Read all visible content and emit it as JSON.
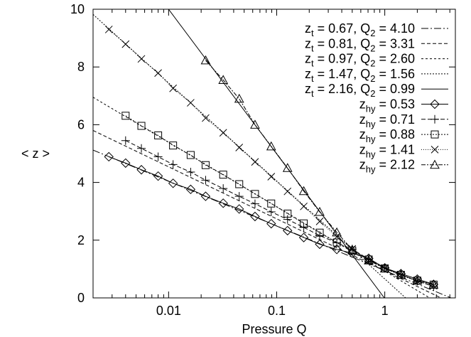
{
  "chart_data": {
    "type": "line",
    "title": "",
    "xlabel": "Pressure Q",
    "ylabel": "< z >",
    "xscale": "log",
    "xlim": [
      0.002,
      4.5
    ],
    "ylim": [
      0,
      10
    ],
    "grid": false,
    "legend_position": "top-right",
    "x_ticks": [
      {
        "value": 0.01,
        "label": "0.01"
      },
      {
        "value": 0.1,
        "label": "0.1"
      },
      {
        "value": 1,
        "label": "1"
      }
    ],
    "y_ticks": [
      {
        "value": 0,
        "label": "0"
      },
      {
        "value": 2,
        "label": "2"
      },
      {
        "value": 4,
        "label": "4"
      },
      {
        "value": 6,
        "label": "6"
      },
      {
        "value": 8,
        "label": "8"
      },
      {
        "value": 10,
        "label": "10"
      }
    ],
    "theory_series": [
      {
        "sub": "t",
        "z": "0.67",
        "Q2": "4.10",
        "dash": "10,3,2,3",
        "points": [
          [
            0.002,
            5.12
          ],
          [
            4.1,
            0.0
          ]
        ]
      },
      {
        "sub": "t",
        "z": "0.81",
        "Q2": "3.31",
        "dash": "5,3",
        "points": [
          [
            0.002,
            5.8
          ],
          [
            3.31,
            0.0
          ]
        ]
      },
      {
        "sub": "t",
        "z": "0.97",
        "Q2": "2.60",
        "dash": "3,3",
        "points": [
          [
            0.002,
            6.95
          ],
          [
            2.6,
            0.0
          ]
        ]
      },
      {
        "sub": "t",
        "z": "1.47",
        "Q2": "1.56",
        "dash": "2,2",
        "points": [
          [
            0.002,
            9.82
          ],
          [
            1.56,
            0.0
          ]
        ]
      },
      {
        "sub": "t",
        "z": "2.16",
        "Q2": "0.99",
        "dash": "none",
        "points": [
          [
            0.002,
            13.5
          ],
          [
            0.99,
            0.0
          ]
        ]
      }
    ],
    "sim_series": [
      {
        "sub": "hy",
        "z": "0.53",
        "marker": "diamond",
        "dash": "none",
        "points": [
          [
            0.0028,
            4.89
          ],
          [
            0.004,
            4.67
          ],
          [
            0.0056,
            4.44
          ],
          [
            0.008,
            4.22
          ],
          [
            0.011,
            3.97
          ],
          [
            0.016,
            3.76
          ],
          [
            0.022,
            3.52
          ],
          [
            0.032,
            3.28
          ],
          [
            0.045,
            3.08
          ],
          [
            0.063,
            2.82
          ],
          [
            0.089,
            2.57
          ],
          [
            0.126,
            2.33
          ],
          [
            0.178,
            2.09
          ],
          [
            0.25,
            1.86
          ],
          [
            0.36,
            1.68
          ],
          [
            0.5,
            1.55
          ],
          [
            0.71,
            1.37
          ],
          [
            1.0,
            1.04
          ],
          [
            1.41,
            0.84
          ],
          [
            2.0,
            0.65
          ],
          [
            2.83,
            0.47
          ]
        ]
      },
      {
        "sub": "hy",
        "z": "0.71",
        "marker": "plus",
        "dash": "6,3",
        "points": [
          [
            0.004,
            5.45
          ],
          [
            0.0056,
            5.18
          ],
          [
            0.008,
            4.89
          ],
          [
            0.011,
            4.62
          ],
          [
            0.016,
            4.36
          ],
          [
            0.022,
            4.08
          ],
          [
            0.032,
            3.79
          ],
          [
            0.045,
            3.52
          ],
          [
            0.063,
            3.26
          ],
          [
            0.089,
            2.98
          ],
          [
            0.126,
            2.72
          ],
          [
            0.178,
            2.44
          ],
          [
            0.25,
            2.16
          ],
          [
            0.36,
            1.91
          ],
          [
            0.5,
            1.69
          ],
          [
            0.71,
            1.34
          ],
          [
            1.0,
            1.04
          ],
          [
            1.41,
            0.81
          ],
          [
            2.0,
            0.58
          ],
          [
            2.83,
            0.4
          ]
        ]
      },
      {
        "sub": "hy",
        "z": "0.88",
        "marker": "square",
        "dash": "2,2",
        "points": [
          [
            0.004,
            6.31
          ],
          [
            0.0056,
            5.96
          ],
          [
            0.008,
            5.63
          ],
          [
            0.011,
            5.28
          ],
          [
            0.016,
            4.95
          ],
          [
            0.022,
            4.6
          ],
          [
            0.032,
            4.27
          ],
          [
            0.045,
            3.94
          ],
          [
            0.063,
            3.6
          ],
          [
            0.089,
            3.27
          ],
          [
            0.126,
            2.92
          ],
          [
            0.178,
            2.58
          ],
          [
            0.25,
            2.26
          ],
          [
            0.36,
            1.92
          ],
          [
            0.5,
            1.64
          ],
          [
            0.71,
            1.33
          ],
          [
            1.0,
            1.02
          ],
          [
            1.41,
            0.8
          ],
          [
            2.0,
            0.6
          ],
          [
            2.83,
            0.46
          ]
        ]
      },
      {
        "sub": "hy",
        "z": "1.41",
        "marker": "cross",
        "dash": "1,2",
        "points": [
          [
            0.0028,
            9.3
          ],
          [
            0.004,
            8.79
          ],
          [
            0.0056,
            8.28
          ],
          [
            0.008,
            7.79
          ],
          [
            0.011,
            7.26
          ],
          [
            0.016,
            6.76
          ],
          [
            0.022,
            6.23
          ],
          [
            0.032,
            5.72
          ],
          [
            0.045,
            5.21
          ],
          [
            0.063,
            4.71
          ],
          [
            0.089,
            4.2
          ],
          [
            0.126,
            3.69
          ],
          [
            0.178,
            3.17
          ],
          [
            0.25,
            2.65
          ],
          [
            0.36,
            2.12
          ],
          [
            0.5,
            1.7
          ],
          [
            0.71,
            1.3
          ],
          [
            1.0,
            1.03
          ],
          [
            1.41,
            0.78
          ],
          [
            2.0,
            0.58
          ],
          [
            2.83,
            0.42
          ]
        ]
      },
      {
        "sub": "hy",
        "z": "2.12",
        "marker": "triangle",
        "dash": "6,2,2,2",
        "points": [
          [
            0.022,
            8.23
          ],
          [
            0.032,
            7.55
          ],
          [
            0.045,
            6.9
          ],
          [
            0.063,
            6.0
          ],
          [
            0.089,
            5.25
          ],
          [
            0.126,
            4.5
          ],
          [
            0.178,
            3.7
          ],
          [
            0.25,
            2.98
          ],
          [
            0.36,
            2.27
          ],
          [
            0.5,
            1.67
          ],
          [
            0.71,
            1.3
          ],
          [
            1.0,
            1.02
          ],
          [
            1.41,
            0.8
          ],
          [
            2.0,
            0.6
          ],
          [
            2.83,
            0.46
          ]
        ]
      }
    ]
  }
}
